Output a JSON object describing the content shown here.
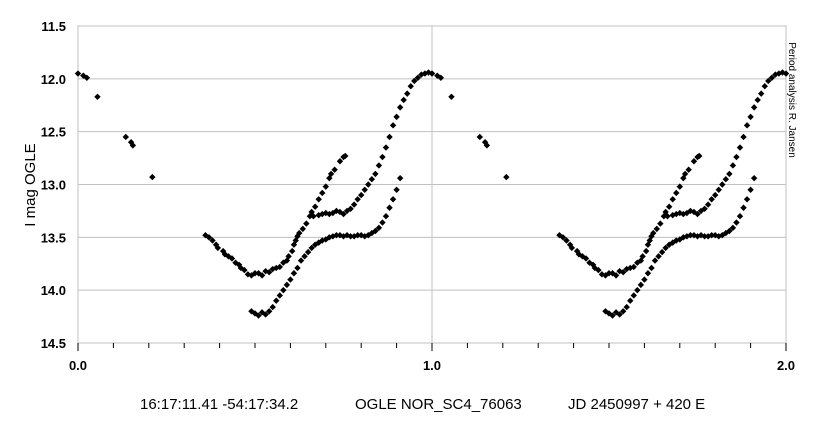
{
  "chart_data": {
    "type": "scatter",
    "xlim": [
      0.0,
      2.0
    ],
    "ylim": [
      14.5,
      11.5
    ],
    "y_inverted": true,
    "x_ticks": [
      "0.0",
      "1.0",
      "2.0"
    ],
    "y_ticks": [
      "11.5",
      "12.0",
      "12.5",
      "13.0",
      "13.5",
      "14.0",
      "14.5"
    ],
    "ylabel": "I mag OGLE",
    "xlabel": "",
    "grid": "major gridlines on x and y",
    "marker": "diamond",
    "marker_color": "#000000",
    "points_phase_0_to_1": [
      [
        0.0,
        11.95
      ],
      [
        0.015,
        11.97
      ],
      [
        0.025,
        11.99
      ],
      [
        0.055,
        12.17
      ],
      [
        0.135,
        12.55
      ],
      [
        0.15,
        12.6
      ],
      [
        0.155,
        12.63
      ],
      [
        0.21,
        12.93
      ],
      [
        0.36,
        13.48
      ],
      [
        0.37,
        13.5
      ],
      [
        0.38,
        13.53
      ],
      [
        0.39,
        13.57
      ],
      [
        0.395,
        13.6
      ],
      [
        0.41,
        13.63
      ],
      [
        0.415,
        13.66
      ],
      [
        0.425,
        13.68
      ],
      [
        0.435,
        13.7
      ],
      [
        0.445,
        13.74
      ],
      [
        0.455,
        13.76
      ],
      [
        0.46,
        13.79
      ],
      [
        0.47,
        13.81
      ],
      [
        0.48,
        13.85
      ],
      [
        0.49,
        13.86
      ],
      [
        0.5,
        13.84
      ],
      [
        0.51,
        13.84
      ],
      [
        0.52,
        13.86
      ],
      [
        0.53,
        13.82
      ],
      [
        0.54,
        13.83
      ],
      [
        0.55,
        13.8
      ],
      [
        0.56,
        13.79
      ],
      [
        0.57,
        13.78
      ],
      [
        0.58,
        13.74
      ],
      [
        0.59,
        13.72
      ],
      [
        0.595,
        13.68
      ],
      [
        0.605,
        13.63
      ],
      [
        0.61,
        13.57
      ],
      [
        0.615,
        13.53
      ],
      [
        0.62,
        13.49
      ],
      [
        0.625,
        13.46
      ],
      [
        0.635,
        13.42
      ],
      [
        0.645,
        13.37
      ],
      [
        0.655,
        13.3
      ],
      [
        0.66,
        13.26
      ],
      [
        0.67,
        13.21
      ],
      [
        0.68,
        13.14
      ],
      [
        0.69,
        13.08
      ],
      [
        0.7,
        13.02
      ],
      [
        0.71,
        12.94
      ],
      [
        0.715,
        12.9
      ],
      [
        0.725,
        12.86
      ],
      [
        0.74,
        12.78
      ],
      [
        0.75,
        12.74
      ],
      [
        0.755,
        12.73
      ],
      [
        0.49,
        14.2
      ],
      [
        0.5,
        14.22
      ],
      [
        0.51,
        14.24
      ],
      [
        0.52,
        14.21
      ],
      [
        0.53,
        14.23
      ],
      [
        0.54,
        14.2
      ],
      [
        0.55,
        14.16
      ],
      [
        0.56,
        14.1
      ],
      [
        0.57,
        14.05
      ],
      [
        0.58,
        14.0
      ],
      [
        0.59,
        13.95
      ],
      [
        0.6,
        13.9
      ],
      [
        0.61,
        13.84
      ],
      [
        0.62,
        13.79
      ],
      [
        0.63,
        13.72
      ],
      [
        0.64,
        13.68
      ],
      [
        0.65,
        13.64
      ],
      [
        0.66,
        13.6
      ],
      [
        0.67,
        13.57
      ],
      [
        0.68,
        13.55
      ],
      [
        0.69,
        13.53
      ],
      [
        0.7,
        13.52
      ],
      [
        0.71,
        13.5
      ],
      [
        0.72,
        13.49
      ],
      [
        0.73,
        13.48
      ],
      [
        0.74,
        13.48
      ],
      [
        0.75,
        13.49
      ],
      [
        0.76,
        13.48
      ],
      [
        0.77,
        13.49
      ],
      [
        0.78,
        13.49
      ],
      [
        0.79,
        13.48
      ],
      [
        0.8,
        13.48
      ],
      [
        0.81,
        13.49
      ],
      [
        0.82,
        13.48
      ],
      [
        0.83,
        13.46
      ],
      [
        0.84,
        13.44
      ],
      [
        0.85,
        13.41
      ],
      [
        0.86,
        13.36
      ],
      [
        0.87,
        13.3
      ],
      [
        0.88,
        13.22
      ],
      [
        0.89,
        13.14
      ],
      [
        0.9,
        13.05
      ],
      [
        0.91,
        12.94
      ],
      [
        0.665,
        13.3
      ],
      [
        0.68,
        13.29
      ],
      [
        0.69,
        13.28
      ],
      [
        0.7,
        13.27
      ],
      [
        0.71,
        13.28
      ],
      [
        0.72,
        13.27
      ],
      [
        0.73,
        13.25
      ],
      [
        0.74,
        13.26
      ],
      [
        0.75,
        13.28
      ],
      [
        0.76,
        13.25
      ],
      [
        0.77,
        13.23
      ],
      [
        0.78,
        13.19
      ],
      [
        0.79,
        13.14
      ],
      [
        0.8,
        13.1
      ],
      [
        0.81,
        13.05
      ],
      [
        0.82,
        13.0
      ],
      [
        0.83,
        12.95
      ],
      [
        0.84,
        12.9
      ],
      [
        0.85,
        12.82
      ],
      [
        0.86,
        12.74
      ],
      [
        0.87,
        12.65
      ],
      [
        0.88,
        12.55
      ],
      [
        0.89,
        12.44
      ],
      [
        0.9,
        12.36
      ],
      [
        0.91,
        12.27
      ],
      [
        0.92,
        12.2
      ],
      [
        0.93,
        12.14
      ],
      [
        0.94,
        12.07
      ],
      [
        0.95,
        12.02
      ],
      [
        0.96,
        11.99
      ],
      [
        0.97,
        11.96
      ],
      [
        0.98,
        11.95
      ],
      [
        0.99,
        11.94
      ],
      [
        1.0,
        11.95
      ]
    ]
  },
  "side_note": "Period analysis R. Jansen",
  "footer": {
    "coords": "16:17:11.41 -54:17:34.2",
    "star_id": "OGLE NOR_SC4_76063",
    "ephemeris": "JD 2450997 + 420 E"
  }
}
